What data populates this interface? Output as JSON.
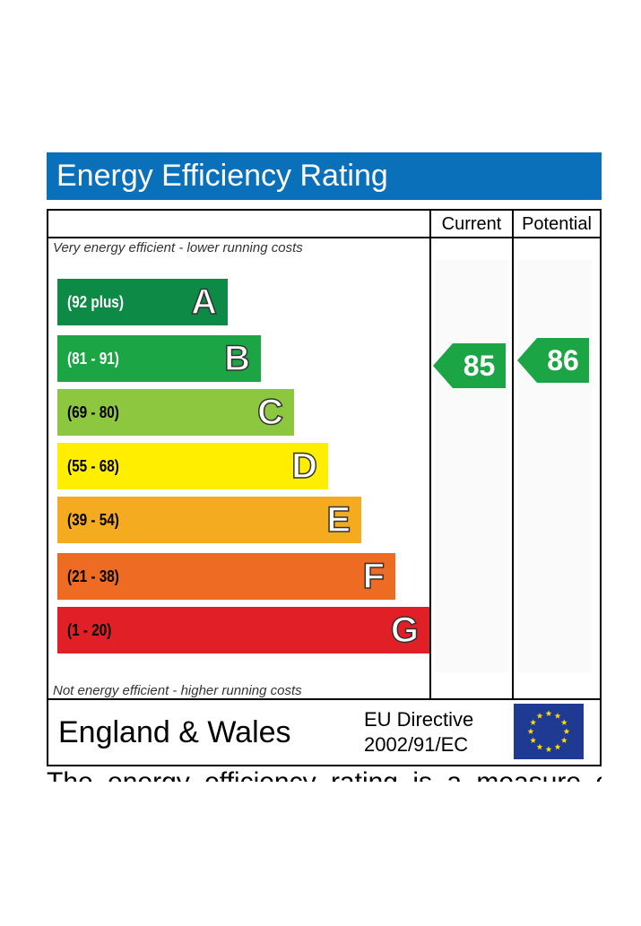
{
  "header": {
    "title": "Energy Efficiency Rating"
  },
  "columns": {
    "current": "Current",
    "potential": "Potential"
  },
  "notes": {
    "top": "Very energy efficient - lower running costs",
    "bottom": "Not energy efficient - higher running costs"
  },
  "footer": {
    "region": "England & Wales",
    "directive_line1": "EU Directive",
    "directive_line2": "2002/91/EC"
  },
  "chart_data": {
    "type": "bar",
    "title": "Energy Efficiency Rating",
    "categories": [
      "A",
      "B",
      "C",
      "D",
      "E",
      "F",
      "G"
    ],
    "ranges": [
      "(92 plus)",
      "(81 - 91)",
      "(69 - 80)",
      "(55 - 68)",
      "(39 - 54)",
      "(21 - 38)",
      "(1 - 20)"
    ],
    "colors": [
      "#0c8a46",
      "#1ba545",
      "#8dc63f",
      "#ffee00",
      "#f5ab1f",
      "#ee6b24",
      "#e01f27"
    ],
    "range_text_colors": [
      "#ffffff",
      "#ffffff",
      "#000000",
      "#000000",
      "#000000",
      "#000000",
      "#000000"
    ],
    "current": {
      "label": "Current",
      "value": 85,
      "band": "B"
    },
    "potential": {
      "label": "Potential",
      "value": 86,
      "band": "B"
    }
  },
  "colors": {
    "header_blue": "#0a70b9",
    "eu_blue": "#1f3a93",
    "eu_star": "#ffdd00"
  }
}
